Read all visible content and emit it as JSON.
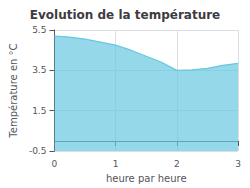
{
  "chart_data": {
    "type": "area",
    "title": "Evolution de la température",
    "xlabel": "heure par heure",
    "ylabel": "Température en °C",
    "x": [
      0,
      0.25,
      0.5,
      0.75,
      1.0,
      1.25,
      1.5,
      1.75,
      2.0,
      2.25,
      2.5,
      2.75,
      3.0
    ],
    "values": [
      5.2,
      5.15,
      5.05,
      4.9,
      4.75,
      4.5,
      4.2,
      3.9,
      3.5,
      3.52,
      3.6,
      3.75,
      3.85
    ],
    "color": "#66c8e0",
    "xlim": [
      0,
      3
    ],
    "xticks": [
      0,
      1,
      2,
      3
    ],
    "ylim": [
      -0.5,
      5.5
    ],
    "yticks": [
      -0.5,
      1.5,
      3.5,
      5.5
    ],
    "grid": true
  }
}
